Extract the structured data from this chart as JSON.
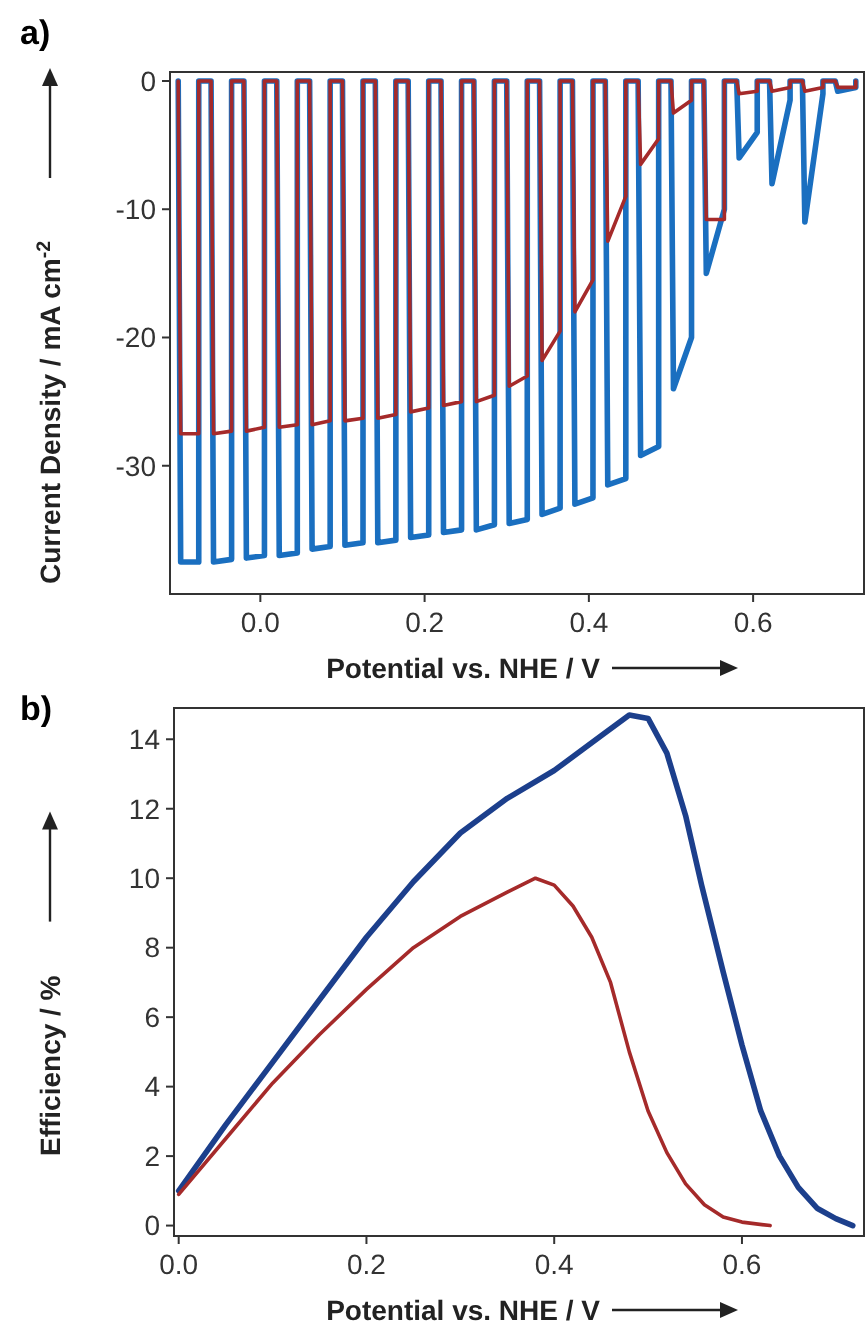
{
  "chart_data": [
    {
      "type": "line",
      "title": "a)",
      "xlabel": "Potential vs. NHE / V",
      "ylabel": "Current Density / mA cm$^{-2}$",
      "xlim": [
        -0.11,
        0.735
      ],
      "ylim": [
        -40,
        0.7
      ],
      "xticks": [
        {
          "value": 0,
          "label": "0.0"
        },
        {
          "value": 0.2,
          "label": "0.2"
        },
        {
          "value": 0.4,
          "label": "0.4"
        },
        {
          "value": 0.6,
          "label": "0.6"
        }
      ],
      "yticks": [
        0,
        -10,
        -20,
        -30
      ],
      "grid": false,
      "marker": "none",
      "line_style": "solid",
      "series": [
        {
          "color": "#1a6fc0",
          "x": [
            -0.1,
            -0.097,
            -0.075,
            -0.075,
            -0.06,
            -0.057,
            -0.035,
            -0.035,
            -0.02,
            -0.017,
            0.005,
            0.005,
            0.02,
            0.023,
            0.045,
            0.045,
            0.06,
            0.063,
            0.085,
            0.085,
            0.1,
            0.103,
            0.125,
            0.125,
            0.14,
            0.143,
            0.165,
            0.165,
            0.18,
            0.183,
            0.205,
            0.205,
            0.22,
            0.223,
            0.245,
            0.245,
            0.26,
            0.263,
            0.285,
            0.285,
            0.3,
            0.303,
            0.325,
            0.325,
            0.34,
            0.343,
            0.365,
            0.365,
            0.38,
            0.383,
            0.405,
            0.405,
            0.42,
            0.423,
            0.445,
            0.445,
            0.46,
            0.463,
            0.485,
            0.485,
            0.5,
            0.503,
            0.525,
            0.525,
            0.54,
            0.543,
            0.565,
            0.565,
            0.58,
            0.583,
            0.605,
            0.605,
            0.62,
            0.623,
            0.645,
            0.645,
            0.66,
            0.663,
            0.685,
            0.685,
            0.7,
            0.703,
            0.725,
            0.725
          ],
          "values": [
            0,
            -37.5,
            -37.5,
            0,
            0,
            -37.5,
            -37.3,
            0,
            0,
            -37.2,
            -37,
            0,
            0,
            -37,
            -36.8,
            0,
            0,
            -36.5,
            -36.3,
            0,
            0,
            -36.2,
            -36,
            0,
            0,
            -36,
            -35.8,
            0,
            0,
            -35.6,
            -35.4,
            0,
            0,
            -35.2,
            -35,
            0,
            0,
            -35,
            -34.6,
            0,
            0,
            -34.5,
            -34.2,
            0,
            0,
            -33.8,
            -33.3,
            0,
            0,
            -33,
            -32.5,
            0,
            0,
            -31.5,
            -31,
            0,
            0,
            -29.2,
            -28.5,
            0,
            0,
            -24,
            -20,
            0,
            0,
            -15,
            -10,
            0,
            0,
            -6,
            -4,
            0,
            0,
            -8,
            -1.5,
            0,
            0,
            -11,
            -1,
            0,
            0,
            -0.8,
            -0.5,
            0
          ]
        },
        {
          "color": "#a52a2a",
          "x": [
            -0.1,
            -0.097,
            -0.075,
            -0.075,
            -0.06,
            -0.057,
            -0.035,
            -0.035,
            -0.02,
            -0.017,
            0.005,
            0.005,
            0.02,
            0.023,
            0.045,
            0.045,
            0.06,
            0.063,
            0.085,
            0.085,
            0.1,
            0.103,
            0.125,
            0.125,
            0.14,
            0.143,
            0.165,
            0.165,
            0.18,
            0.183,
            0.205,
            0.205,
            0.22,
            0.223,
            0.245,
            0.245,
            0.26,
            0.263,
            0.285,
            0.285,
            0.3,
            0.303,
            0.325,
            0.325,
            0.34,
            0.343,
            0.365,
            0.365,
            0.38,
            0.383,
            0.405,
            0.405,
            0.42,
            0.423,
            0.445,
            0.445,
            0.46,
            0.463,
            0.485,
            0.485,
            0.5,
            0.503,
            0.525,
            0.525,
            0.54,
            0.543,
            0.565,
            0.565,
            0.58,
            0.583,
            0.605,
            0.605,
            0.62,
            0.623,
            0.645,
            0.645,
            0.66,
            0.663,
            0.685,
            0.685,
            0.7,
            0.703,
            0.725,
            0.725
          ],
          "values": [
            0,
            -27.5,
            -27.5,
            0,
            0,
            -27.5,
            -27.3,
            0,
            0,
            -27.3,
            -27,
            0,
            0,
            -27,
            -26.8,
            0,
            0,
            -26.8,
            -26.5,
            0,
            0,
            -26.5,
            -26.3,
            0,
            0,
            -26.3,
            -26,
            0,
            0,
            -25.8,
            -25.5,
            0,
            0,
            -25.3,
            -25,
            0,
            0,
            -25,
            -24.5,
            0,
            0,
            -23.8,
            -23,
            0,
            0,
            -21.8,
            -19.5,
            0,
            0,
            -18,
            -15.5,
            0,
            0,
            -12.5,
            -9,
            0,
            0,
            -6.5,
            -4.5,
            0,
            0,
            -2.5,
            -1.5,
            0,
            0,
            -10.8,
            -10.8,
            0,
            0,
            -1,
            -0.8,
            0,
            0,
            -0.8,
            -0.5,
            0,
            0,
            -0.8,
            -0.5,
            0,
            0,
            -0.5,
            -0.5,
            0
          ]
        }
      ]
    },
    {
      "type": "line",
      "title": "b)",
      "xlabel": "Potential vs. NHE / V",
      "ylabel": "Efficiency / %",
      "xlim": [
        -0.005,
        0.73
      ],
      "ylim": [
        -0.3,
        14.9
      ],
      "xticks": [
        {
          "value": 0,
          "label": "0.0"
        },
        {
          "value": 0.2,
          "label": "0.2"
        },
        {
          "value": 0.4,
          "label": "0.4"
        },
        {
          "value": 0.6,
          "label": "0.6"
        }
      ],
      "yticks": [
        0,
        2,
        4,
        6,
        8,
        10,
        12,
        14
      ],
      "grid": false,
      "marker": "none",
      "line_style": "solid",
      "series": [
        {
          "color": "#1c3f8c",
          "x": [
            0,
            0.05,
            0.1,
            0.15,
            0.2,
            0.25,
            0.3,
            0.35,
            0.4,
            0.45,
            0.48,
            0.5,
            0.52,
            0.54,
            0.557,
            0.58,
            0.6,
            0.62,
            0.64,
            0.66,
            0.68,
            0.7,
            0.718
          ],
          "values": [
            1.0,
            2.9,
            4.7,
            6.5,
            8.3,
            9.9,
            11.3,
            12.3,
            13.1,
            14.1,
            14.7,
            14.6,
            13.6,
            11.8,
            9.8,
            7.3,
            5.2,
            3.3,
            2.0,
            1.1,
            0.5,
            0.2,
            0
          ]
        },
        {
          "color": "#a52a2a",
          "x": [
            0,
            0.05,
            0.1,
            0.15,
            0.2,
            0.25,
            0.3,
            0.35,
            0.38,
            0.4,
            0.42,
            0.44,
            0.46,
            0.48,
            0.5,
            0.52,
            0.54,
            0.56,
            0.58,
            0.6,
            0.63
          ],
          "values": [
            0.9,
            2.5,
            4.1,
            5.5,
            6.8,
            8.0,
            8.9,
            9.6,
            10.0,
            9.8,
            9.2,
            8.3,
            7.0,
            5.0,
            3.3,
            2.1,
            1.2,
            0.6,
            0.25,
            0.1,
            0
          ]
        }
      ]
    }
  ]
}
